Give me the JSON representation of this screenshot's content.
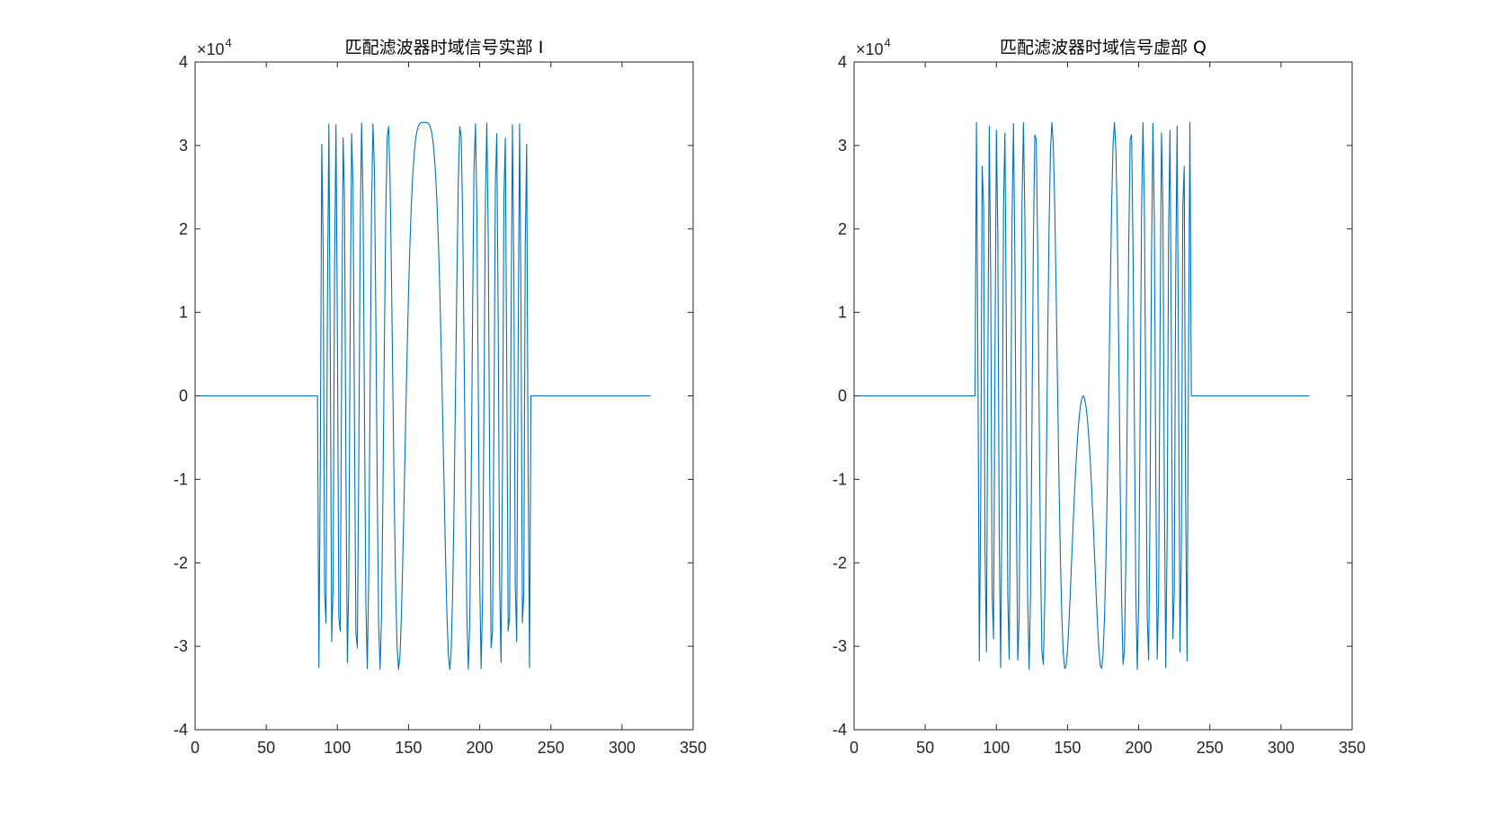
{
  "chart_data": [
    {
      "type": "line",
      "title": "匹配滤波器时域信号实部 I",
      "xlabel": "",
      "ylabel": "",
      "xlim": [
        0,
        350
      ],
      "ylim": [
        -4,
        4
      ],
      "xticks": [
        0,
        50,
        100,
        150,
        200,
        250,
        300,
        350
      ],
      "yticks": [
        -4,
        -3,
        -2,
        -1,
        0,
        1,
        2,
        3,
        4
      ],
      "y_exponent_label": "×10",
      "y_exponent_power": "4",
      "y_scale_factor": 10000,
      "grid": false,
      "signal": {
        "n": 320,
        "pulse_start": 86,
        "pulse_end": 236,
        "amplitude": 32767,
        "center": 161,
        "component": "real"
      },
      "series": [
        {
          "color": "#0072BD"
        }
      ]
    },
    {
      "type": "line",
      "title": "匹配滤波器时域信号虚部 Q",
      "xlabel": "",
      "ylabel": "",
      "xlim": [
        0,
        350
      ],
      "ylim": [
        -4,
        4
      ],
      "xticks": [
        0,
        50,
        100,
        150,
        200,
        250,
        300,
        350
      ],
      "yticks": [
        -4,
        -3,
        -2,
        -1,
        0,
        1,
        2,
        3,
        4
      ],
      "y_exponent_label": "×10",
      "y_exponent_power": "4",
      "y_scale_factor": 10000,
      "grid": false,
      "signal": {
        "n": 320,
        "pulse_start": 86,
        "pulse_end": 236,
        "amplitude": 32767,
        "center": 161,
        "component": "imag"
      },
      "series": [
        {
          "color": "#0072BD"
        }
      ]
    }
  ]
}
